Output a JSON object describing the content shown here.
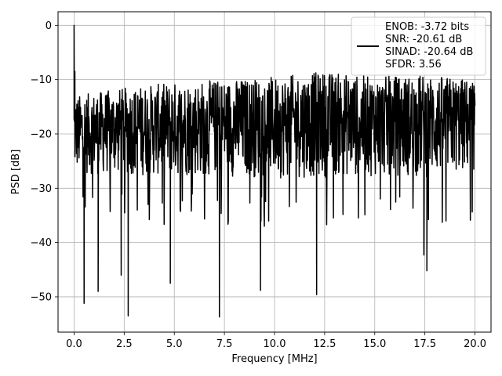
{
  "chart_data": {
    "type": "line",
    "title": "",
    "xlabel": "Frequency [MHz]",
    "ylabel": "PSD [dB]",
    "xlim": [
      -0.8,
      20.8
    ],
    "ylim": [
      -56.5,
      2.5
    ],
    "grid": true,
    "legend_placement": "top-right",
    "x_ticks": [
      0.0,
      2.5,
      5.0,
      7.5,
      10.0,
      12.5,
      15.0,
      17.5,
      20.0
    ],
    "x_tick_labels": [
      "0.0",
      "2.5",
      "5.0",
      "7.5",
      "10.0",
      "12.5",
      "15.0",
      "17.5",
      "20.0"
    ],
    "y_ticks": [
      0,
      -10,
      -20,
      -30,
      -40,
      -50
    ],
    "y_tick_labels": [
      "0",
      "−10",
      "−20",
      "−30",
      "−40",
      "−50"
    ],
    "series": [
      {
        "color": "#000000",
        "x_range": [
          0.0,
          20.0
        ],
        "peaks": [
          [
            0.0,
            0.0
          ],
          [
            0.04,
            -8.5
          ]
        ],
        "upper_envelope": [
          [
            0.0,
            -13.0
          ],
          [
            2.5,
            -11.5
          ],
          [
            5.0,
            -10.5
          ],
          [
            7.5,
            -10.0
          ],
          [
            10.0,
            -9.5
          ],
          [
            12.5,
            -8.5
          ],
          [
            15.0,
            -9.5
          ],
          [
            17.5,
            -9.0
          ],
          [
            20.0,
            -10.0
          ]
        ],
        "lower_envelope": [
          [
            0.0,
            -30.0
          ],
          [
            2.5,
            -30.5
          ],
          [
            5.0,
            -31.0
          ],
          [
            7.5,
            -31.0
          ],
          [
            10.0,
            -31.5
          ],
          [
            12.5,
            -31.5
          ],
          [
            15.0,
            -31.0
          ],
          [
            17.5,
            -31.5
          ],
          [
            20.0,
            -30.0
          ]
        ],
        "dips": [
          [
            0.5,
            -51.2
          ],
          [
            1.2,
            -49.0
          ],
          [
            2.35,
            -46.0
          ],
          [
            2.7,
            -53.5
          ],
          [
            4.8,
            -47.5
          ],
          [
            7.25,
            -53.7
          ],
          [
            9.3,
            -48.8
          ],
          [
            12.1,
            -49.6
          ],
          [
            17.6,
            -45.2
          ],
          [
            17.45,
            -42.3
          ]
        ]
      }
    ],
    "legend": {
      "lines": [
        "ENOB: -3.72 bits",
        "SNR: -20.61 dB",
        "SINAD: -20.64 dB",
        "SFDR: 3.56"
      ]
    }
  }
}
